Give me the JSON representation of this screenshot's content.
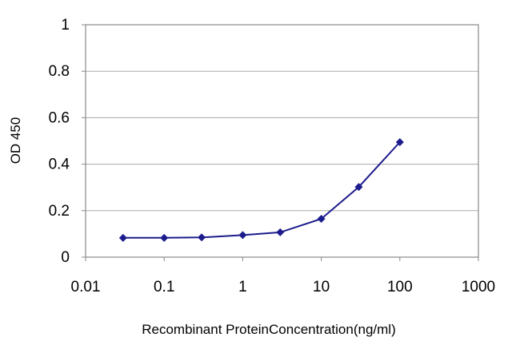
{
  "chart_data": {
    "type": "line",
    "title": "",
    "xlabel": "Recombinant ProteinConcentration(ng/ml)",
    "ylabel": "OD 450",
    "x_scale": "log",
    "xlim": [
      0.01,
      1000
    ],
    "ylim": [
      0,
      1
    ],
    "x_ticks": [
      "0.01",
      "0.1",
      "1",
      "10",
      "100",
      "1000"
    ],
    "y_ticks": [
      "0",
      "0.2",
      "0.4",
      "0.6",
      "0.8",
      "1"
    ],
    "grid": "horizontal",
    "legend": "none",
    "series": [
      {
        "x": [
          0.03,
          0.1,
          0.3,
          1,
          3,
          10,
          30,
          100
        ],
        "y": [
          0.083,
          0.083,
          0.085,
          0.095,
          0.107,
          0.165,
          0.302,
          0.495
        ],
        "color": "#1c1c8c"
      }
    ]
  }
}
